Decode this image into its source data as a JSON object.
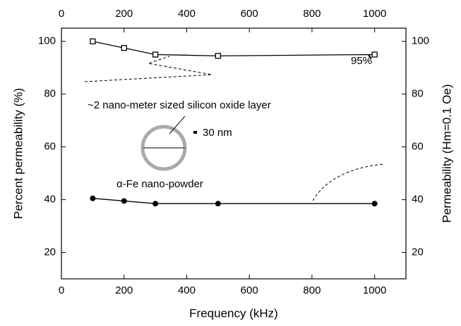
{
  "chart_data": {
    "type": "line",
    "x_label": "Frequency (kHz)",
    "y_label": "Percent permeability (%)",
    "y2_label": "Permeability (Hm=0.1 Oe)",
    "x": [
      100,
      200,
      300,
      500,
      1000
    ],
    "series": [
      {
        "color": "#000000",
        "marker": "open-square",
        "values": [
          100,
          97.5,
          95,
          94.5,
          95
        ]
      },
      {
        "name": "α-Fe nano-powder",
        "color": "#000000",
        "marker": "filled-circle",
        "values": [
          40.5,
          39.5,
          38.5,
          38.5,
          38.5
        ]
      }
    ],
    "annotations": [
      "95%",
      "~2 nano-meter sized silicon oxide layer",
      "30 nm"
    ],
    "xlim": [
      0,
      1100
    ],
    "xticks": [
      0,
      200,
      400,
      600,
      800,
      1000
    ],
    "ylim": [
      10,
      105
    ],
    "yticks": [
      20,
      40,
      60,
      80,
      100
    ],
    "y2lim": [
      10,
      105
    ],
    "y2ticks": [
      20,
      40,
      60,
      80,
      100
    ]
  }
}
